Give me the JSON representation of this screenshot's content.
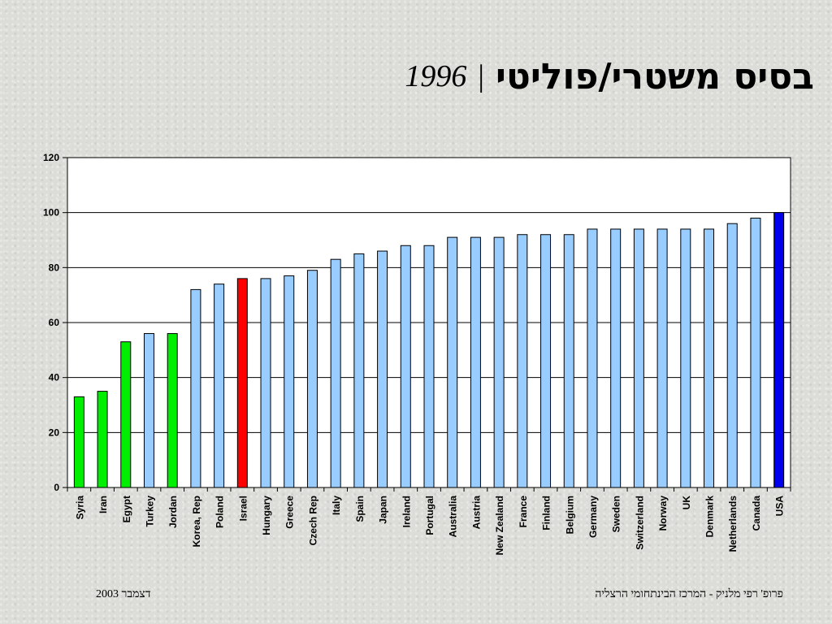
{
  "slide": {
    "title_hebrew": "בסיס משטרי/פוליטי",
    "title_separator": "|",
    "title_year": "1996",
    "footer_left": "דצמבר 2003",
    "footer_right": "פרופ' רפי מלניק - המרכז הבינתחומי הרצליה"
  },
  "chart_data": {
    "type": "bar",
    "title": "",
    "xlabel": "",
    "ylabel": "",
    "ylim": [
      0,
      120
    ],
    "yticks": [
      0,
      20,
      40,
      60,
      80,
      100,
      120
    ],
    "grid": true,
    "legend": "none",
    "categories": [
      "Syria",
      "Iran",
      "Egypt",
      "Turkey",
      "Jordan",
      "Korea, Rep",
      "Poland",
      "Israel",
      "Hungary",
      "Greece",
      "Czech Rep",
      "Italy",
      "Spain",
      "Japan",
      "Ireland",
      "Portugal",
      "Australia",
      "Austria",
      "New Zealand",
      "France",
      "Finland",
      "Belgium",
      "Germany",
      "Sweden",
      "Switzerland",
      "Norway",
      "UK",
      "Denmark",
      "Netherlands",
      "Canada",
      "USA"
    ],
    "values": [
      33,
      35,
      53,
      56,
      56,
      72,
      74,
      76,
      76,
      77,
      79,
      83,
      85,
      86,
      88,
      88,
      91,
      91,
      91,
      92,
      92,
      92,
      94,
      94,
      94,
      94,
      94,
      94,
      96,
      98,
      100
    ],
    "colors": [
      "#00ee00",
      "#00ee00",
      "#00ee00",
      "#99ccff",
      "#00ee00",
      "#99ccff",
      "#99ccff",
      "#ff0000",
      "#99ccff",
      "#99ccff",
      "#99ccff",
      "#99ccff",
      "#99ccff",
      "#99ccff",
      "#99ccff",
      "#99ccff",
      "#99ccff",
      "#99ccff",
      "#99ccff",
      "#99ccff",
      "#99ccff",
      "#99ccff",
      "#99ccff",
      "#99ccff",
      "#99ccff",
      "#99ccff",
      "#99ccff",
      "#99ccff",
      "#99ccff",
      "#99ccff",
      "#0000ee"
    ]
  }
}
